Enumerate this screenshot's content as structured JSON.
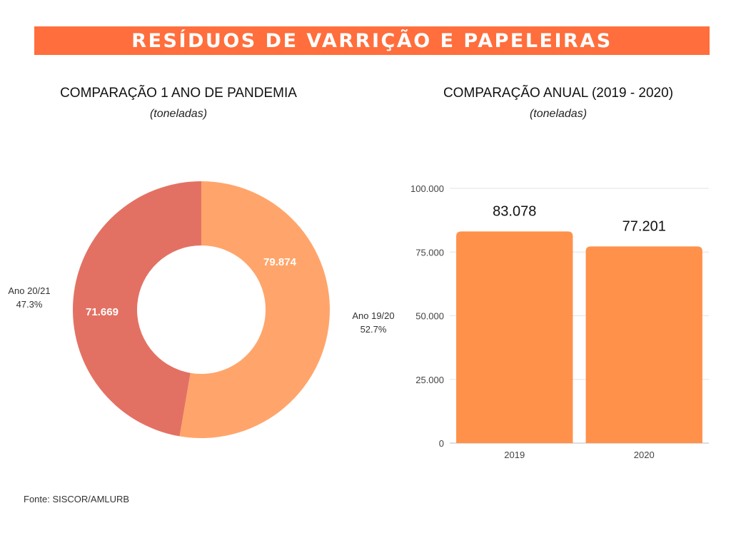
{
  "header": {
    "title": "RESÍDUOS DE VARRIÇÃO E PAPELEIRAS"
  },
  "colors": {
    "banner": "#ff6e3c",
    "donut_19_20": "#ffa56b",
    "donut_20_21": "#e37163",
    "bar": "#ff914b"
  },
  "footer": {
    "source": "Fonte: SISCOR/AMLURB"
  },
  "chart_data": [
    {
      "type": "pie",
      "title": "COMPARAÇÃO 1 ANO DE PANDEMIA",
      "subtitle": "(toneladas)",
      "slices": [
        {
          "label": "Ano 19/20",
          "value": 79874,
          "value_label": "79.874",
          "percent": "52.7%",
          "color": "#ffa56b"
        },
        {
          "label": "Ano 20/21",
          "value": 71669,
          "value_label": "71.669",
          "percent": "47.3%",
          "color": "#e37163"
        }
      ]
    },
    {
      "type": "bar",
      "title": "COMPARAÇÃO ANUAL (2019 - 2020)",
      "subtitle": "(toneladas)",
      "categories": [
        "2019",
        "2020"
      ],
      "values": [
        83078,
        77201
      ],
      "value_labels": [
        "83.078",
        "77.201"
      ],
      "ylim": [
        0,
        100000
      ],
      "yticks": [
        0,
        25000,
        50000,
        75000,
        100000
      ],
      "ytick_labels": [
        "0",
        "25.000",
        "50.000",
        "75.000",
        "100.000"
      ],
      "grid": true,
      "color": "#ff914b"
    }
  ]
}
